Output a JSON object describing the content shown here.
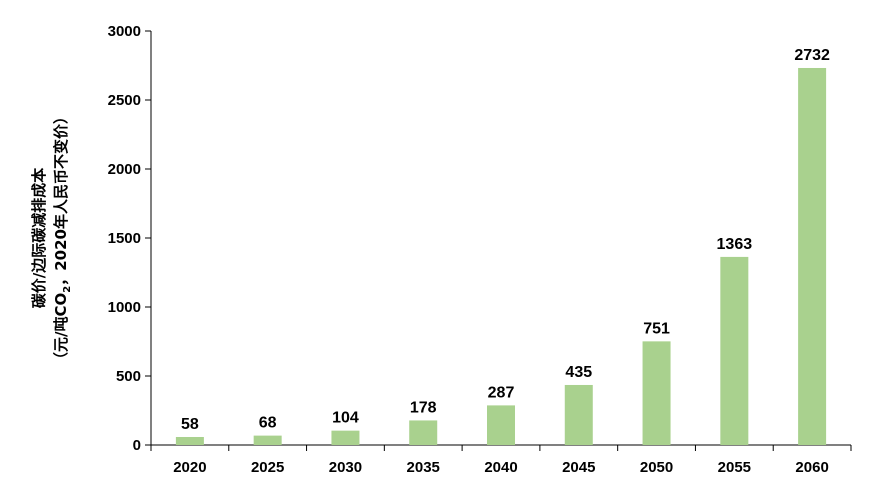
{
  "chart_data": {
    "type": "bar",
    "categories": [
      "2020",
      "2025",
      "2030",
      "2035",
      "2040",
      "2045",
      "2050",
      "2055",
      "2060"
    ],
    "values": [
      58,
      68,
      104,
      178,
      287,
      435,
      751,
      1363,
      2732
    ],
    "ylabel_line1": "碳价/边际碳减排成本",
    "ylabel_line2_pre": "（元/吨CO",
    "ylabel_line2_sub": "2",
    "ylabel_line2_post": "，2020年人民币不变价）",
    "ylim": [
      0,
      3000
    ],
    "yticks": [
      0,
      500,
      1000,
      1500,
      2000,
      2500,
      3000
    ],
    "bar_color": "#a9d18e",
    "grid": false,
    "legend": "none"
  }
}
